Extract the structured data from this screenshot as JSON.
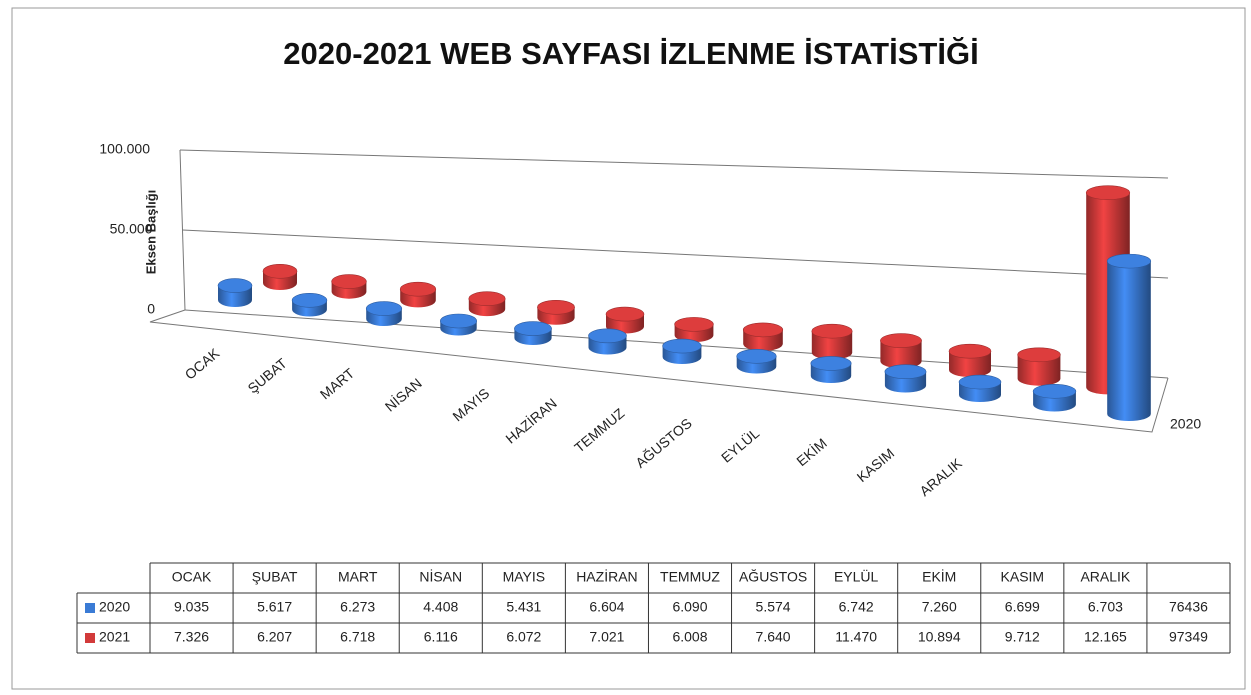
{
  "chart_data": {
    "type": "bar3d",
    "title": "2020-2021 WEB SAYFASI İZLENME İSTATİSTİĞİ",
    "y_axis_title": "Eksen Başlığı",
    "z_axis_labels": [
      "2020"
    ],
    "categories": [
      "OCAK",
      "ŞUBAT",
      "MART",
      "NİSAN",
      "MAYIS",
      "HAZİRAN",
      "TEMMUZ",
      "AĞUSTOS",
      "EYLÜL",
      "EKİM",
      "KASIM",
      "ARALIK",
      null
    ],
    "series": [
      {
        "name": "2020",
        "color": "#3a7bd5",
        "values": [
          9035,
          5617,
          6273,
          4408,
          5431,
          6604,
          6090,
          5574,
          6742,
          7260,
          6699,
          6703,
          76436
        ],
        "value_labels": [
          "9.035",
          "5.617",
          "6.273",
          "4.408",
          "5.431",
          "6.604",
          "6.090",
          "5.574",
          "6.742",
          "7.260",
          "6.699",
          "6.703",
          "76436"
        ]
      },
      {
        "name": "2021",
        "color": "#d23a3a",
        "values": [
          7326,
          6207,
          6718,
          6116,
          6072,
          7021,
          6008,
          7640,
          11470,
          10894,
          9712,
          12165,
          97349
        ],
        "value_labels": [
          "7.326",
          "6.207",
          "6.718",
          "6.116",
          "6.072",
          "7.021",
          "6.008",
          "7.640",
          "11.470",
          "10.894",
          "9.712",
          "12.165",
          "97349"
        ]
      }
    ],
    "ylim": [
      0,
      100000
    ],
    "yticks": [
      0,
      {
        "value": 50000,
        "label": "50.000"
      },
      {
        "value": 100000,
        "label": "100.000"
      }
    ],
    "grid": true,
    "data_table": true
  }
}
